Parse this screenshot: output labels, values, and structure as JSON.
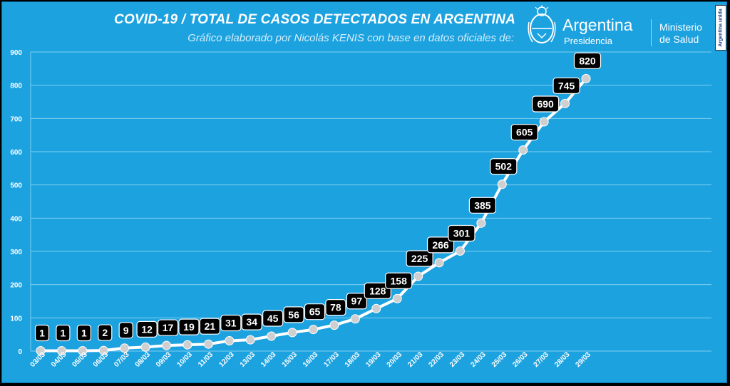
{
  "header": {
    "title": "COVID-19  /  TOTAL DE CASOS DETECTADOS EN ARGENTINA",
    "subtitle": "Gráfico elaborado por Nicolás KENIS con base en datos oficiales de:"
  },
  "logos": {
    "presidency_name": "Argentina",
    "presidency_sub": "Presidencia",
    "ministry_line1": "Ministerio",
    "ministry_line2": "de Salud",
    "badge_text": "Argentina unida"
  },
  "colors": {
    "background": "#1da2e0",
    "line": "#ffffff",
    "point": "#cfcfcf",
    "label_box": "#000000",
    "grid": "#7fcdee"
  },
  "chart_data": {
    "type": "line",
    "title": "COVID-19  /  TOTAL DE CASOS DETECTADOS EN ARGENTINA",
    "xlabel": "",
    "ylabel": "",
    "categories": [
      "03/03",
      "04/03",
      "05/03",
      "06/03",
      "07/03",
      "08/03",
      "09/03",
      "10/03",
      "11/03",
      "12/03",
      "13/03",
      "14/03",
      "15/03",
      "16/03",
      "17/03",
      "18/03",
      "19/03",
      "20/03",
      "21/03",
      "22/03",
      "23/03",
      "24/03",
      "25/03",
      "26/03",
      "27/03",
      "28/03",
      "29/03"
    ],
    "values": [
      1,
      1,
      1,
      2,
      9,
      12,
      17,
      19,
      21,
      31,
      34,
      45,
      56,
      65,
      78,
      97,
      128,
      158,
      225,
      266,
      301,
      385,
      502,
      605,
      690,
      745,
      820
    ],
    "ylim": [
      0,
      900
    ],
    "yticks": [
      0,
      100,
      200,
      300,
      400,
      500,
      600,
      700,
      800,
      900
    ],
    "grid": true,
    "data_labels": true
  }
}
